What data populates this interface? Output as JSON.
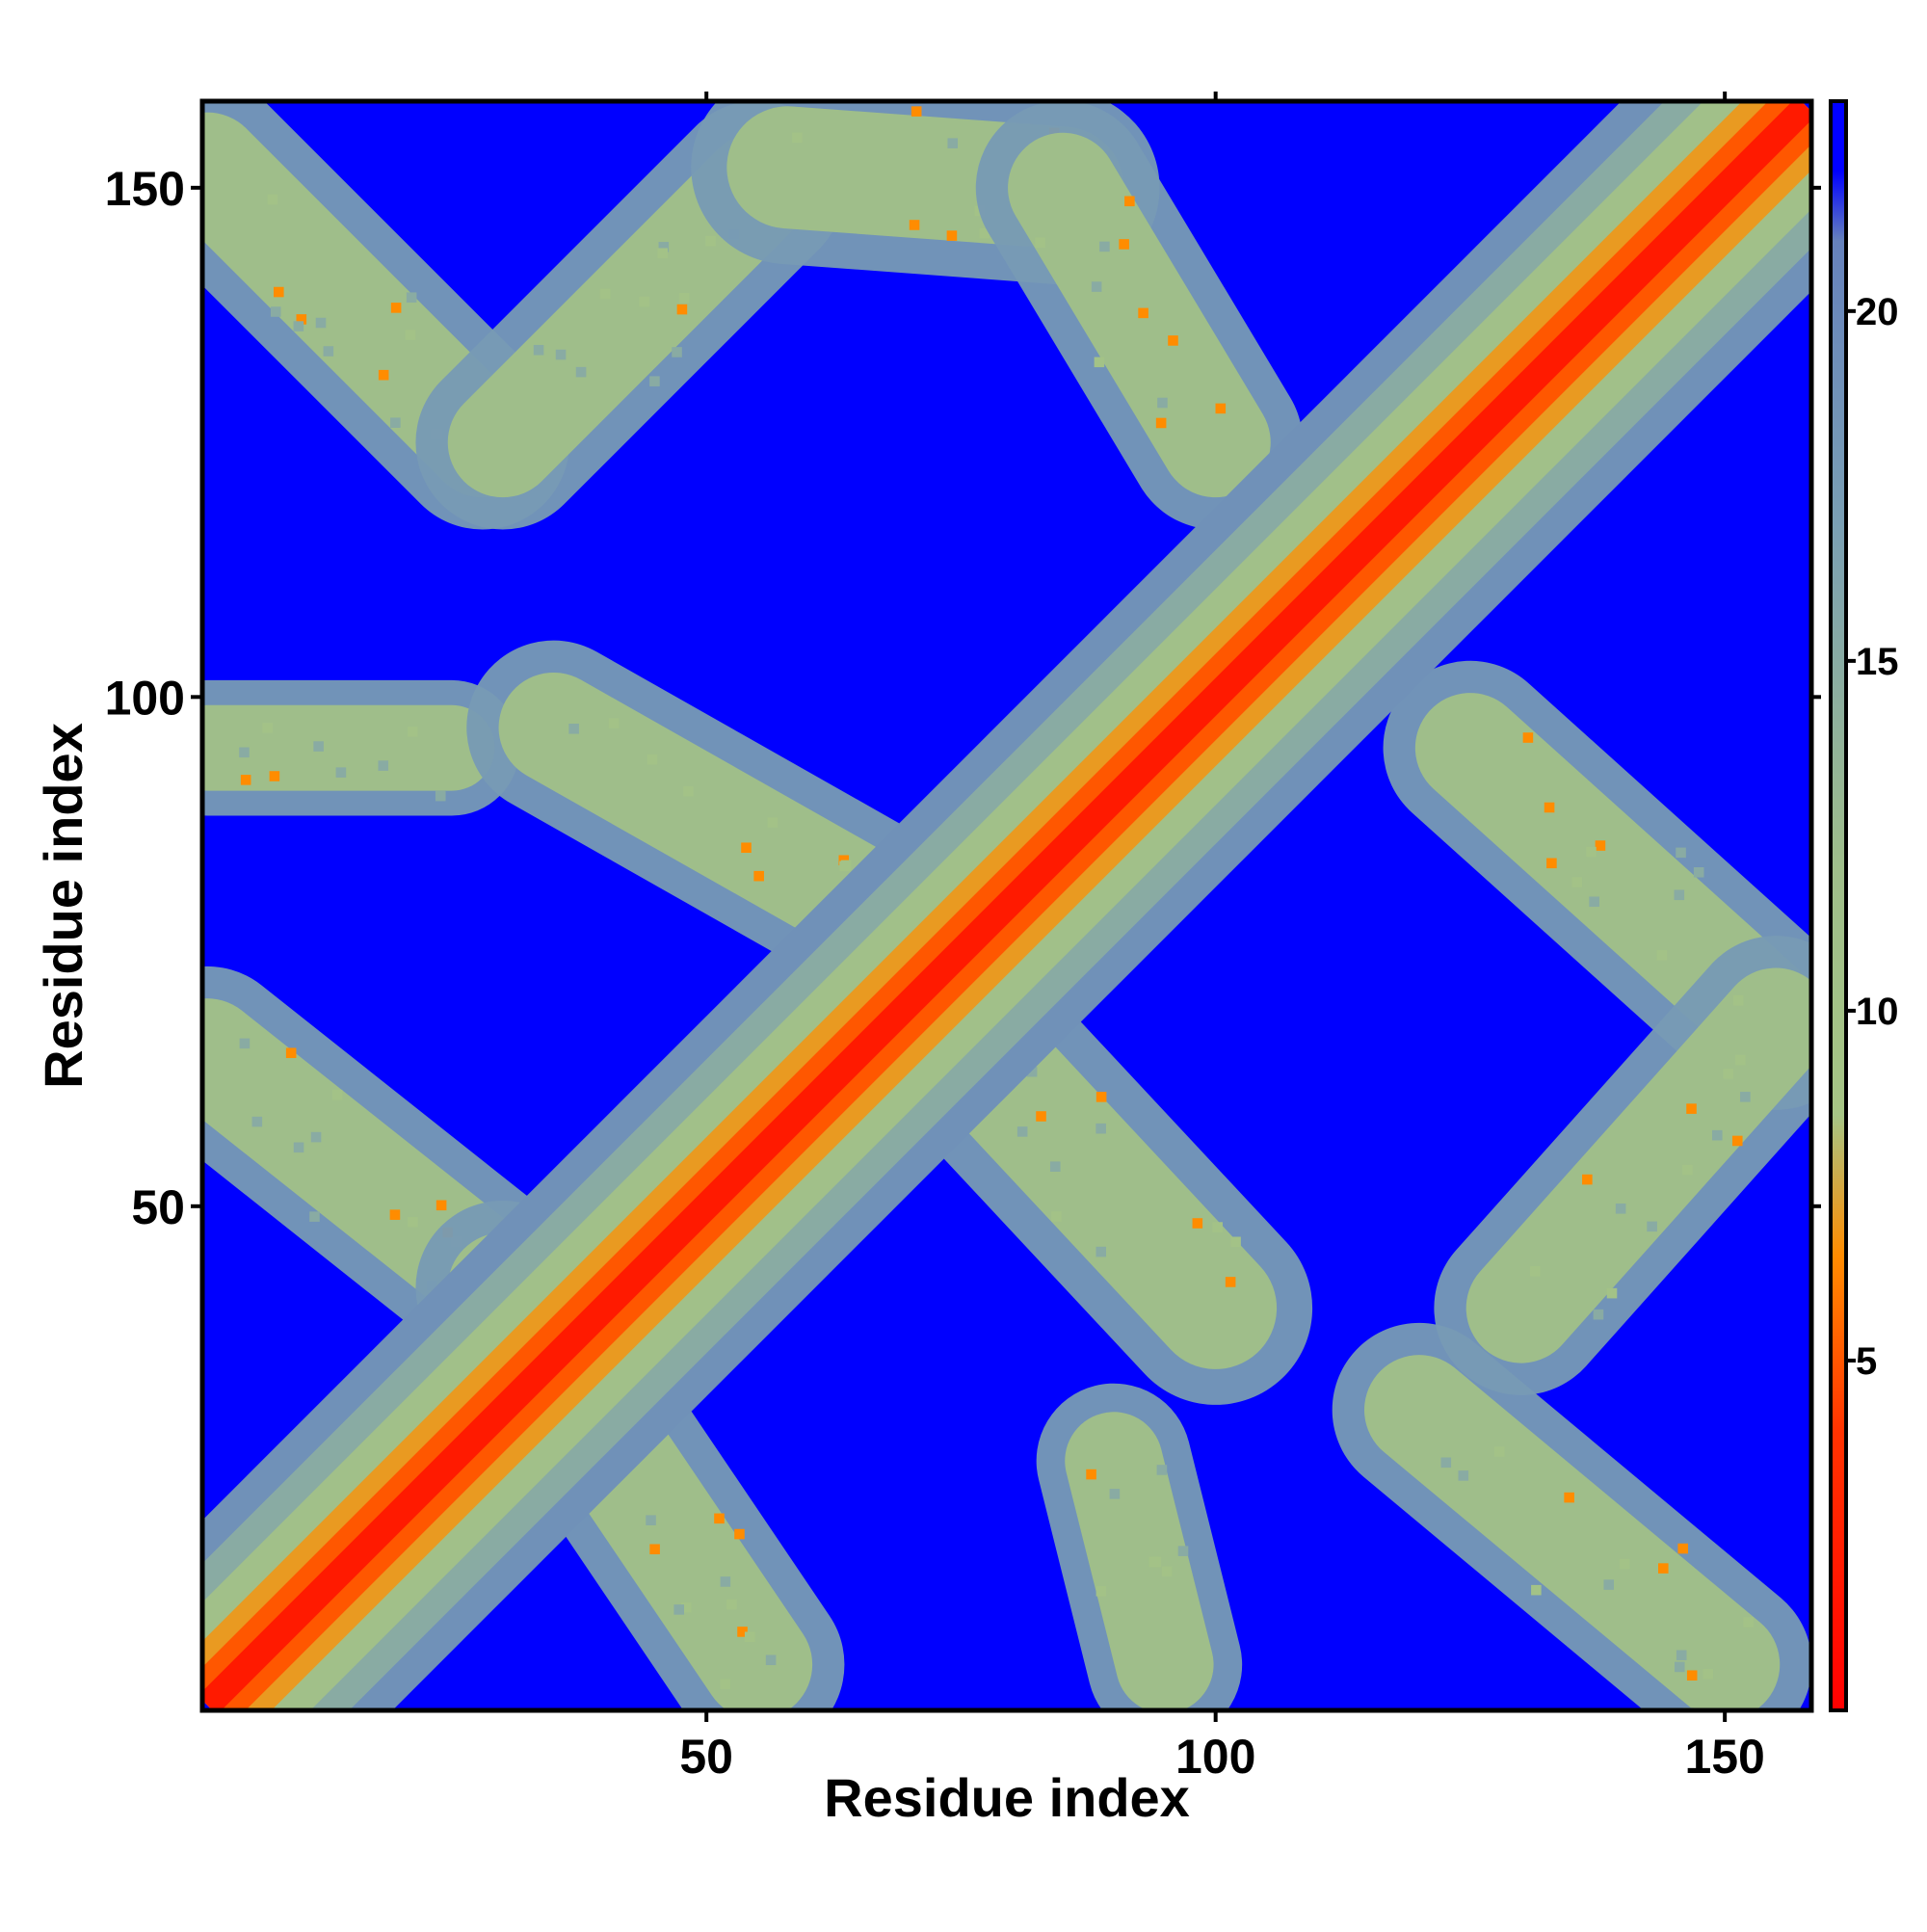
{
  "chart_data": {
    "type": "heatmap",
    "description": "Residue-residue distance map (symmetric contact map)",
    "xlabel": "Residue index",
    "ylabel": "Residue index",
    "xlim": [
      1,
      158
    ],
    "ylim": [
      1,
      158
    ],
    "x_ticks": [
      50,
      100,
      150
    ],
    "y_ticks": [
      50,
      100,
      150
    ],
    "colorbar": {
      "range": [
        0,
        23
      ],
      "ticks": [
        5,
        10,
        15,
        20
      ],
      "stops": [
        {
          "value": 0,
          "color": "#ff0000"
        },
        {
          "value": 4,
          "color": "#ff3300"
        },
        {
          "value": 6.5,
          "color": "#ff8c00"
        },
        {
          "value": 8.5,
          "color": "#a6c585"
        },
        {
          "value": 12,
          "color": "#9fbe8a"
        },
        {
          "value": 17,
          "color": "#7a9fb4"
        },
        {
          "value": 21,
          "color": "#6682bc"
        },
        {
          "value": 22,
          "color": "#0000ff"
        },
        {
          "value": 23,
          "color": "#0000ff"
        }
      ]
    },
    "background_color": "#0000ff",
    "diagonal_band": {
      "from": [
        1,
        1
      ],
      "to": [
        158,
        158
      ],
      "core_value": 2,
      "halo_width_residues": 12
    },
    "structural_bands": [
      {
        "from": [
          1,
          152
        ],
        "to": [
          28,
          125
        ],
        "width": 9
      },
      {
        "from": [
          30,
          125
        ],
        "to": [
          55,
          150
        ],
        "width": 9
      },
      {
        "from": [
          58,
          152
        ],
        "to": [
          85,
          150
        ],
        "width": 10
      },
      {
        "from": [
          85,
          150
        ],
        "to": [
          100,
          125
        ],
        "width": 9
      },
      {
        "from": [
          1,
          95
        ],
        "to": [
          25,
          95
        ],
        "width": 7
      },
      {
        "from": [
          35,
          97
        ],
        "to": [
          65,
          80
        ],
        "width": 9
      },
      {
        "from": [
          1,
          65
        ],
        "to": [
          30,
          42
        ],
        "width": 9
      },
      {
        "from": [
          30,
          42
        ],
        "to": [
          55,
          5
        ],
        "width": 9
      },
      {
        "from": [
          72,
          70
        ],
        "to": [
          100,
          40
        ],
        "width": 10
      },
      {
        "from": [
          90,
          25
        ],
        "to": [
          95,
          5
        ],
        "width": 8
      },
      {
        "from": [
          125,
          95
        ],
        "to": [
          155,
          68
        ],
        "width": 9
      },
      {
        "from": [
          155,
          68
        ],
        "to": [
          130,
          40
        ],
        "width": 9
      },
      {
        "from": [
          120,
          30
        ],
        "to": [
          150,
          5
        ],
        "width": 9
      }
    ]
  }
}
